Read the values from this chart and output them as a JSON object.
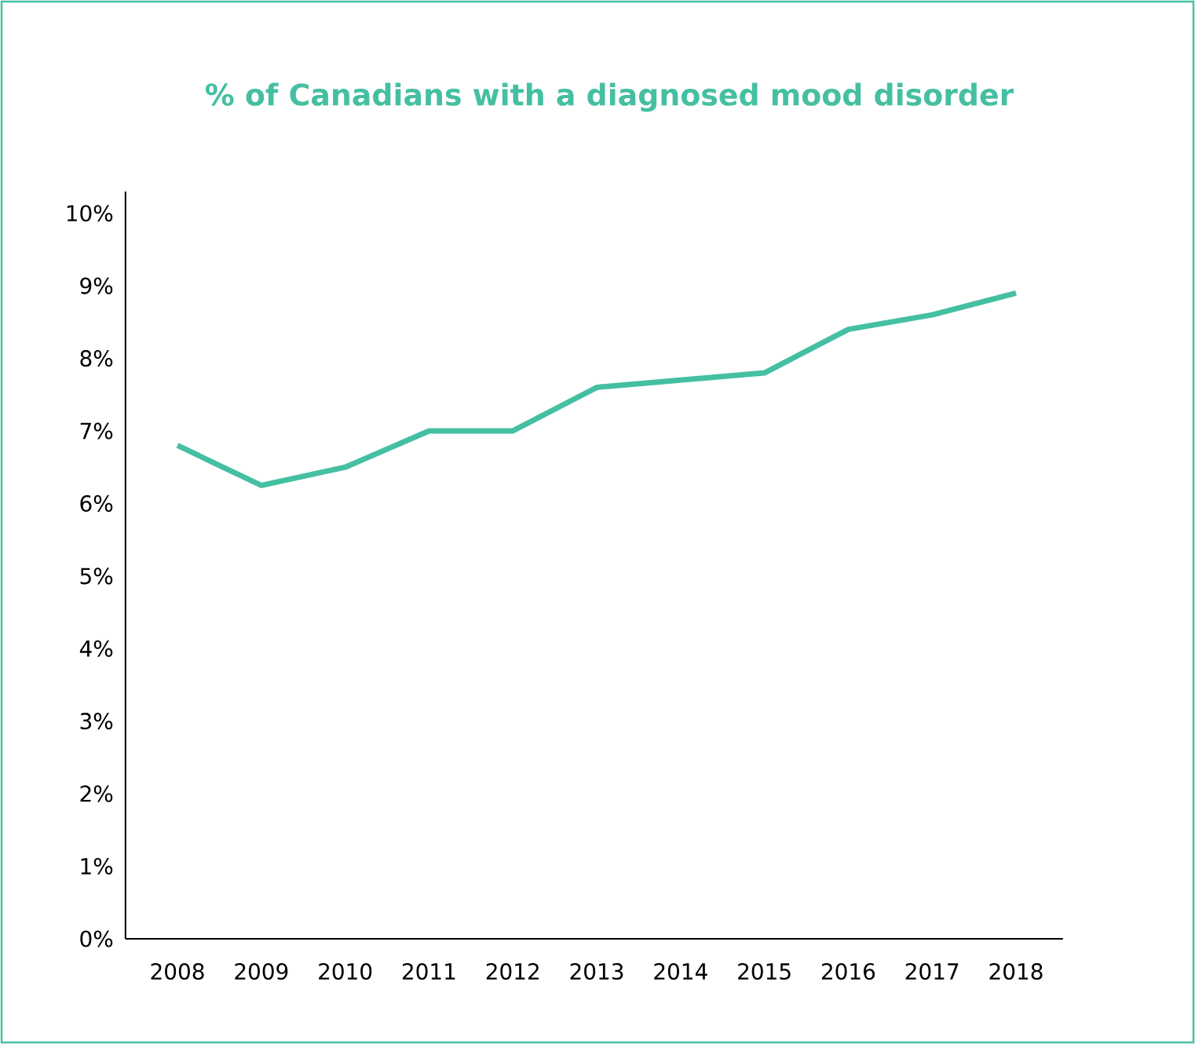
{
  "chart_data": {
    "type": "line",
    "title": "% of Canadians with a diagnosed mood disorder",
    "categories": [
      "2008",
      "2009",
      "2010",
      "2011",
      "2012",
      "2013",
      "2014",
      "2015",
      "2016",
      "2017",
      "2018"
    ],
    "series": [
      {
        "color": "#45bfa2",
        "values": [
          6.8,
          6.25,
          6.5,
          7.0,
          7.0,
          7.6,
          7.7,
          7.8,
          8.4,
          8.6,
          8.9
        ]
      }
    ],
    "ylim": [
      0,
      10.3
    ],
    "yticks": [
      {
        "value": 0,
        "label": "0%"
      },
      {
        "value": 1,
        "label": "1%"
      },
      {
        "value": 2,
        "label": "2%"
      },
      {
        "value": 3,
        "label": "3%"
      },
      {
        "value": 4,
        "label": "4%"
      },
      {
        "value": 5,
        "label": "5%"
      },
      {
        "value": 6,
        "label": "6%"
      },
      {
        "value": 7,
        "label": "7%"
      },
      {
        "value": 8,
        "label": "8%"
      },
      {
        "value": 9,
        "label": "9%"
      },
      {
        "value": 10,
        "label": "10%"
      }
    ],
    "grid": false,
    "marker": "none",
    "line_style": "solid"
  }
}
